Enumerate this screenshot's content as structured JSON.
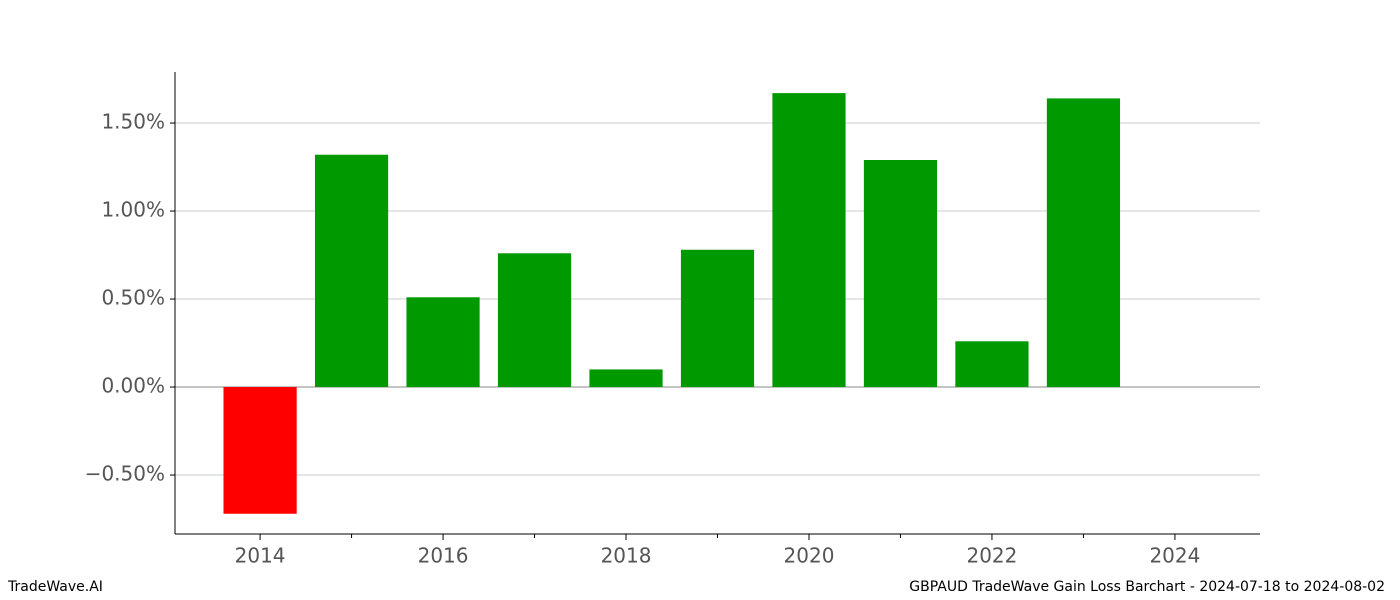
{
  "chart_data": {
    "type": "bar",
    "title": "GBPAUD TradeWave Gain Loss Barchart - 2024-07-18 to 2024-08-02",
    "watermark": "TradeWave.AI",
    "x": [
      2014,
      2015,
      2016,
      2017,
      2018,
      2019,
      2020,
      2021,
      2022,
      2023
    ],
    "values": [
      -0.72,
      1.32,
      0.51,
      0.76,
      0.1,
      0.78,
      1.67,
      1.29,
      0.26,
      1.64
    ],
    "colors": [
      "#ff0000",
      "#009900",
      "#009900",
      "#009900",
      "#009900",
      "#009900",
      "#009900",
      "#009900",
      "#009900",
      "#009900"
    ],
    "bar_width": 0.8,
    "xlim": [
      2013.07,
      2024.93
    ],
    "xticks": [
      2014,
      2016,
      2018,
      2020,
      2022,
      2024
    ],
    "xminorticks": [
      2015,
      2017,
      2019,
      2021,
      2023
    ],
    "ylim": [
      -0.835,
      1.79
    ],
    "yticks": [
      {
        "value": -0.5,
        "label": "−0.50%"
      },
      {
        "value": 0,
        "label": "0.00%"
      },
      {
        "value": 0.5,
        "label": "0.50%"
      },
      {
        "value": 1.0,
        "label": "1.00%"
      },
      {
        "value": 1.5,
        "label": "1.50%"
      }
    ],
    "grid": true
  }
}
